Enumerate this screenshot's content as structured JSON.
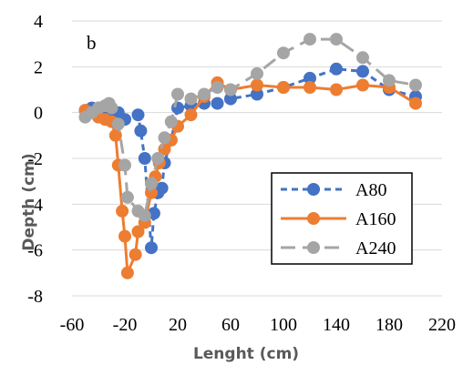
{
  "chart_data": {
    "type": "line",
    "panel_label": "b",
    "xlabel": "Lenght (cm)",
    "ylabel": "Depth (cm)",
    "xlim": [
      -60,
      220
    ],
    "ylim": [
      -8,
      4
    ],
    "x_ticks": [
      "-60",
      "-20",
      "20",
      "60",
      "100",
      "140",
      "180",
      "220"
    ],
    "y_ticks": [
      "4",
      "2",
      "0",
      "-2",
      "-4",
      "-6",
      "-8"
    ],
    "grid": "horizontal",
    "legend_position": "lower-right",
    "series": [
      {
        "name": "A80",
        "color": "#4472C4",
        "line_style": "dashed",
        "points": [
          [
            -50,
            0.1
          ],
          [
            -45,
            0.2
          ],
          [
            -40,
            0.2
          ],
          [
            -35,
            0.2
          ],
          [
            -30,
            0.1
          ],
          [
            -25,
            0.0
          ],
          [
            -20,
            -0.3
          ],
          [
            -10,
            -0.1
          ],
          [
            -8,
            -0.8
          ],
          [
            -5,
            -2.0
          ],
          [
            0,
            -5.9
          ],
          [
            2,
            -4.4
          ],
          [
            5,
            -3.5
          ],
          [
            8,
            -3.3
          ],
          [
            10,
            -2.2
          ],
          [
            15,
            -1.2
          ],
          [
            20,
            0.2
          ],
          [
            30,
            0.3
          ],
          [
            40,
            0.4
          ],
          [
            50,
            0.4
          ],
          [
            60,
            0.6
          ],
          [
            80,
            0.8
          ],
          [
            100,
            1.1
          ],
          [
            120,
            1.5
          ],
          [
            140,
            1.9
          ],
          [
            160,
            1.8
          ],
          [
            180,
            1.0
          ],
          [
            200,
            0.7
          ]
        ]
      },
      {
        "name": "A160",
        "color": "#ED7D31",
        "line_style": "solid",
        "points": [
          [
            -50,
            0.1
          ],
          [
            -45,
            0.0
          ],
          [
            -40,
            -0.2
          ],
          [
            -35,
            -0.3
          ],
          [
            -30,
            -0.4
          ],
          [
            -27,
            -1.0
          ],
          [
            -25,
            -2.3
          ],
          [
            -22,
            -4.3
          ],
          [
            -20,
            -5.4
          ],
          [
            -18,
            -7.0
          ],
          [
            -12,
            -6.2
          ],
          [
            -10,
            -5.2
          ],
          [
            -5,
            -4.8
          ],
          [
            0,
            -3.5
          ],
          [
            3,
            -2.8
          ],
          [
            6,
            -2.2
          ],
          [
            10,
            -1.6
          ],
          [
            15,
            -1.2
          ],
          [
            20,
            -0.6
          ],
          [
            30,
            -0.1
          ],
          [
            40,
            0.7
          ],
          [
            50,
            1.3
          ],
          [
            60,
            1.0
          ],
          [
            80,
            1.2
          ],
          [
            100,
            1.1
          ],
          [
            120,
            1.1
          ],
          [
            140,
            1.0
          ],
          [
            160,
            1.2
          ],
          [
            180,
            1.1
          ],
          [
            200,
            0.4
          ]
        ]
      },
      {
        "name": "A240",
        "color": "#A5A5A5",
        "line_style": "long-dash",
        "points": [
          [
            -50,
            -0.2
          ],
          [
            -45,
            0.0
          ],
          [
            -40,
            0.2
          ],
          [
            -35,
            0.3
          ],
          [
            -32,
            0.4
          ],
          [
            -30,
            0.2
          ],
          [
            -25,
            -0.5
          ],
          [
            -20,
            -2.3
          ],
          [
            -18,
            -3.7
          ],
          [
            -10,
            -4.3
          ],
          [
            -5,
            -4.5
          ],
          [
            0,
            -3.1
          ],
          [
            5,
            -2.0
          ],
          [
            10,
            -1.1
          ],
          [
            15,
            -0.4
          ],
          [
            20,
            0.8
          ],
          [
            30,
            0.6
          ],
          [
            40,
            0.8
          ],
          [
            50,
            1.1
          ],
          [
            60,
            1.0
          ],
          [
            80,
            1.7
          ],
          [
            100,
            2.6
          ],
          [
            120,
            3.2
          ],
          [
            140,
            3.2
          ],
          [
            160,
            2.4
          ],
          [
            180,
            1.4
          ],
          [
            200,
            1.2
          ]
        ]
      }
    ]
  }
}
